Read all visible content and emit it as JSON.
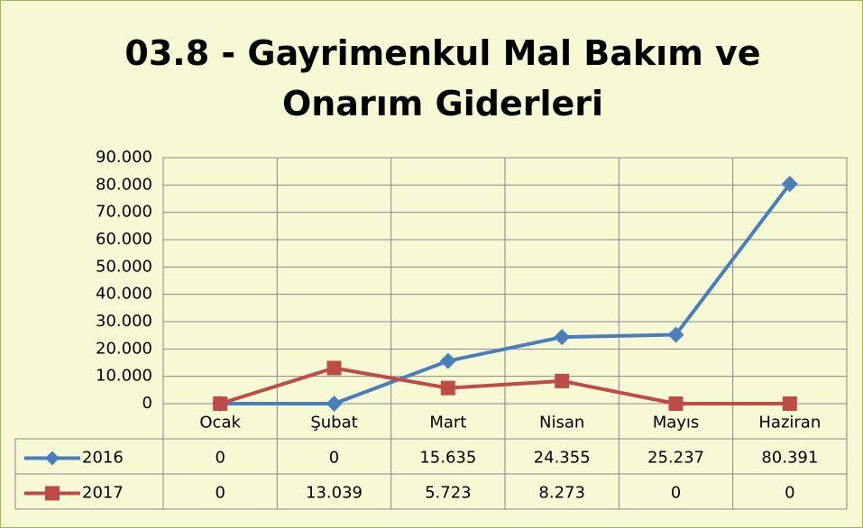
{
  "chart_data": {
    "type": "line",
    "title": "03.8 - Gayrimenkul Mal Bakım ve Onarım Giderleri",
    "categories": [
      "Ocak",
      "Şubat",
      "Mart",
      "Nisan",
      "Mayıs",
      "Haziran"
    ],
    "series": [
      {
        "name": "2016",
        "color": "#4a7ebb",
        "marker": "diamond",
        "values": [
          0,
          0,
          15635,
          24355,
          25237,
          80391
        ],
        "value_labels": [
          "0",
          "0",
          "15.635",
          "24.355",
          "25.237",
          "80.391"
        ]
      },
      {
        "name": "2017",
        "color": "#be4b48",
        "marker": "square",
        "values": [
          0,
          13039,
          5723,
          8273,
          0,
          0
        ],
        "value_labels": [
          "0",
          "13.039",
          "5.723",
          "8.273",
          "0",
          "0"
        ]
      }
    ],
    "ylim": [
      0,
      90000
    ],
    "yticks": [
      0,
      {
        "value": 10000,
        "label": "10.000"
      },
      {
        "value": 20000,
        "label": "20.000"
      },
      {
        "value": 30000,
        "label": "30.000"
      },
      {
        "value": 40000,
        "label": "40.000"
      },
      {
        "value": 50000,
        "label": "50.000"
      },
      {
        "value": 60000,
        "label": "60.000"
      },
      {
        "value": 70000,
        "label": "70.000"
      },
      {
        "value": 80000,
        "label": "80.000"
      },
      {
        "value": 90000,
        "label": "90.000"
      }
    ],
    "grid": true,
    "data_table": true
  }
}
